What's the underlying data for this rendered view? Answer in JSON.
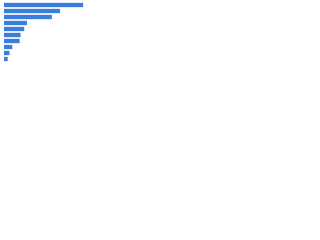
{
  "chart_data": {
    "type": "bar",
    "orientation": "horizontal",
    "categories": [
      null,
      null,
      null,
      null,
      null,
      null,
      null,
      null,
      null,
      null
    ],
    "values": [
      86,
      61,
      52,
      25,
      22,
      18,
      17,
      9,
      6,
      4
    ],
    "color": "#3b7ddd",
    "xlim": [
      0,
      100
    ]
  }
}
